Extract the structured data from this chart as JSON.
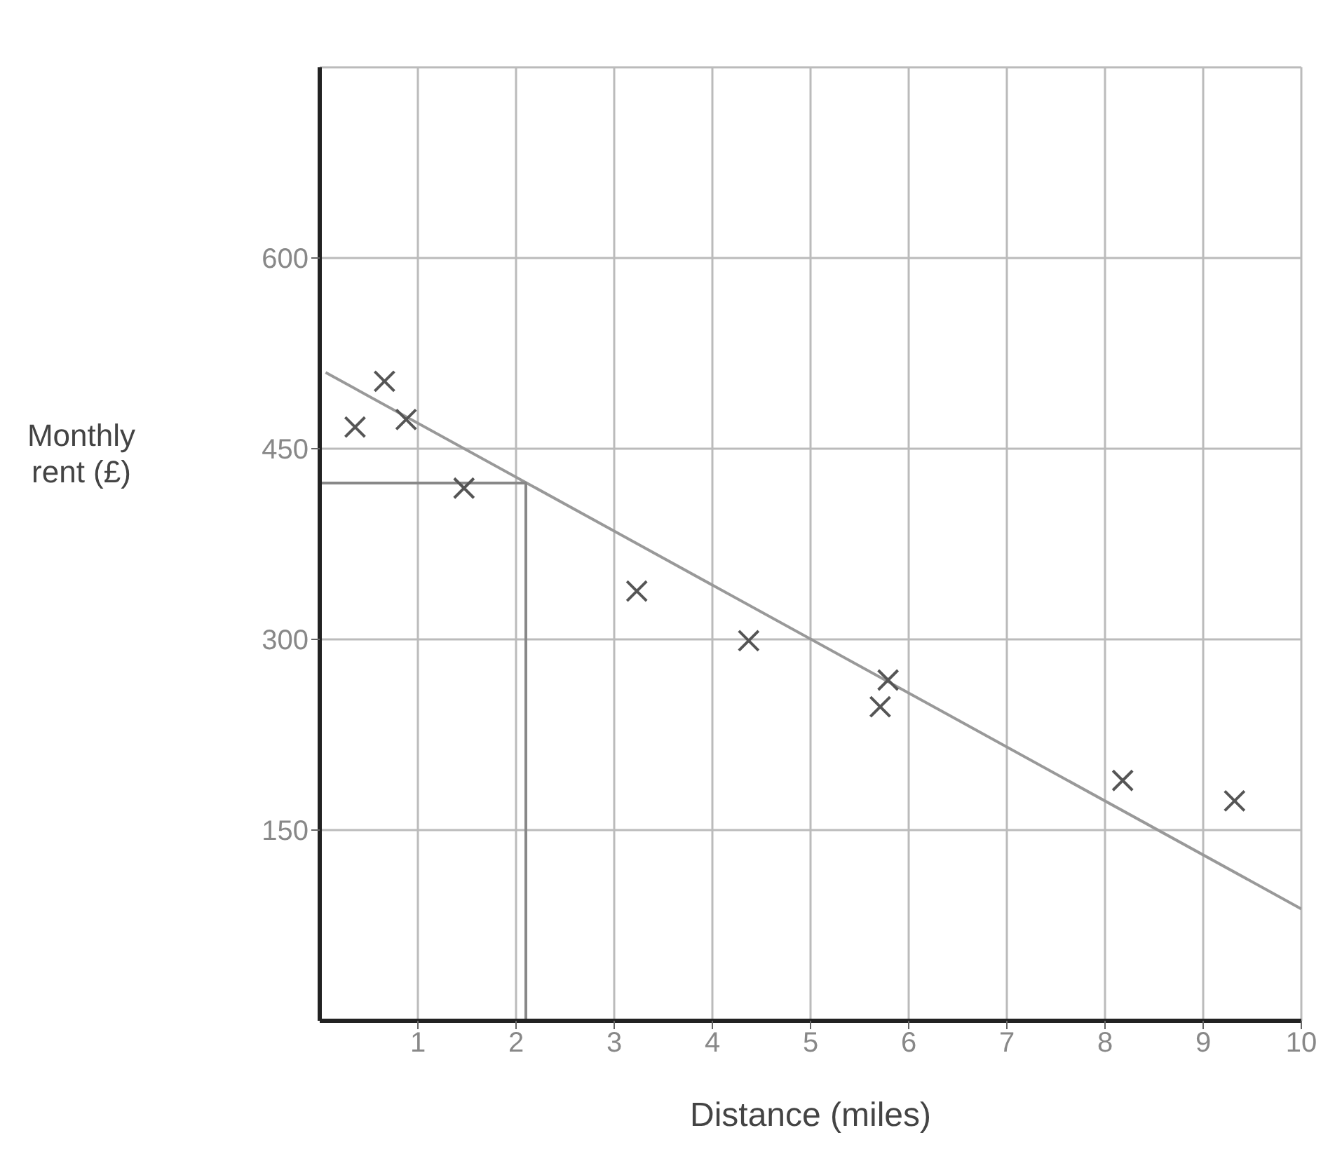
{
  "chart_data": {
    "type": "scatter",
    "xlabel": "Distance (miles)",
    "ylabel": "Monthly rent (£)",
    "xlim": [
      0,
      10
    ],
    "ylim": [
      0,
      750
    ],
    "xticks": [
      1,
      2,
      3,
      4,
      5,
      6,
      7,
      8,
      9,
      10
    ],
    "yticks": [
      150,
      300,
      450,
      600
    ],
    "grid": true,
    "marker": "cross",
    "series": [
      {
        "color": "#555555",
        "x": [
          0.36,
          0.66,
          0.88,
          1.47,
          3.23,
          4.37,
          5.79,
          5.71,
          8.18,
          9.32
        ],
        "values": [
          467,
          503,
          473,
          419,
          338,
          299,
          268,
          247,
          189,
          173
        ]
      },
      {
        "type": "line",
        "color": "#999999",
        "marker": "none",
        "x": [
          0.06,
          10
        ],
        "values": [
          510,
          88
        ]
      },
      {
        "type": "line",
        "color": "#888888",
        "marker": "none",
        "x": [
          0,
          2.1,
          2.1
        ],
        "values": [
          423,
          423,
          0
        ]
      }
    ]
  }
}
